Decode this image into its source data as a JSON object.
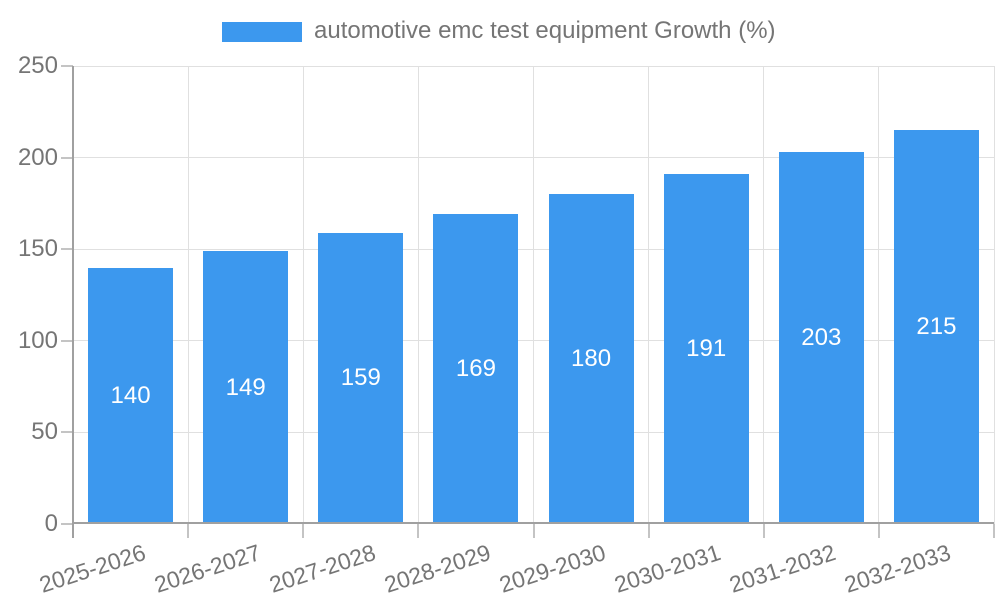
{
  "legend": {
    "label": "automotive emc test equipment Growth (%)"
  },
  "chart_data": {
    "type": "bar",
    "title": "automotive emc test equipment Growth (%)",
    "categories": [
      "2025-2026",
      "2026-2027",
      "2027-2028",
      "2028-2029",
      "2029-2030",
      "2030-2031",
      "2031-2032",
      "2032-2033"
    ],
    "values": [
      140,
      149,
      159,
      169,
      180,
      191,
      203,
      215
    ],
    "xlabel": "",
    "ylabel": "",
    "ylim": [
      0,
      250
    ],
    "yticks": [
      0,
      50,
      100,
      150,
      200,
      250
    ],
    "grid": true,
    "legend_position": "top",
    "value_labels": "inside-center",
    "colors": {
      "bar": "#3C98EE",
      "value_label": "#FFFFFF",
      "axis_text": "#757575",
      "gridline": "#E0E0E0",
      "axis_line": "#A0A0A0",
      "tick": "#C4C4C4",
      "background": "#FFFFFF"
    }
  }
}
